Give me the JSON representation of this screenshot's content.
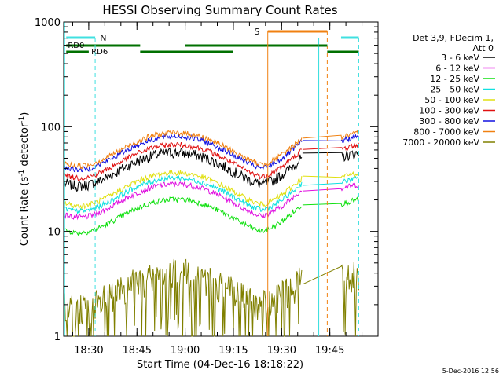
{
  "chart_data": {
    "type": "line",
    "title": "HESSI Observing Summary Count Rates",
    "xlabel": "Start Time (04-Dec-16 18:18:22)",
    "ylabel_main": "Count Rate (s",
    "ylabel_sup1": "-1",
    "ylabel_mid": " detector",
    "ylabel_sup2": "-1",
    "ylabel_end": ")",
    "yscale": "log",
    "ylim": [
      1,
      1000
    ],
    "xlim_minutes": [
      18.37,
      20.0
    ],
    "x_ticks": [
      {
        "label": "18:30",
        "m": 30
      },
      {
        "label": "18:45",
        "m": 45
      },
      {
        "label": "19:00",
        "m": 60
      },
      {
        "label": "19:15",
        "m": 75
      },
      {
        "label": "19:30",
        "m": 90
      },
      {
        "label": "19:45",
        "m": 105
      }
    ],
    "y_ticks": [
      {
        "label": "1",
        "v": 1
      },
      {
        "label": "10",
        "v": 10
      },
      {
        "label": "100",
        "v": 100
      },
      {
        "label": "1000",
        "v": 1000
      }
    ],
    "legend_header": [
      "Det 3,9, FDecim 1,",
      "Att 0"
    ],
    "series": [
      {
        "name": "3 - 6 keV",
        "color": "#000000",
        "base": 42
      },
      {
        "name": "6 - 12 keV",
        "color": "#e010e0",
        "base": 21
      },
      {
        "name": "12 - 25 keV",
        "color": "#10e010",
        "base": 15
      },
      {
        "name": "25 - 50 keV",
        "color": "#10e0e0",
        "base": 24
      },
      {
        "name": "50 - 100 keV",
        "color": "#e0e010",
        "base": 27
      },
      {
        "name": "100 - 300 keV",
        "color": "#e01010",
        "base": 50
      },
      {
        "name": "300 - 800 keV",
        "color": "#1010e0",
        "base": 60
      },
      {
        "name": "800 - 7000 keV",
        "color": "#f08010",
        "base": 65
      },
      {
        "name": "7000 - 20000 keV",
        "color": "#808000",
        "base": 3
      }
    ],
    "flags": [
      {
        "label": "N",
        "color": "#40e0e0"
      },
      {
        "label": "S",
        "color": "#f08010"
      },
      {
        "label": "RD0",
        "color": "#007000"
      },
      {
        "label": "RD6",
        "color": "#007000"
      }
    ],
    "gaps_minutes": [
      [
        96.5,
        108.5
      ]
    ]
  },
  "footer_timestamp": "5-Dec-2016 12:56"
}
